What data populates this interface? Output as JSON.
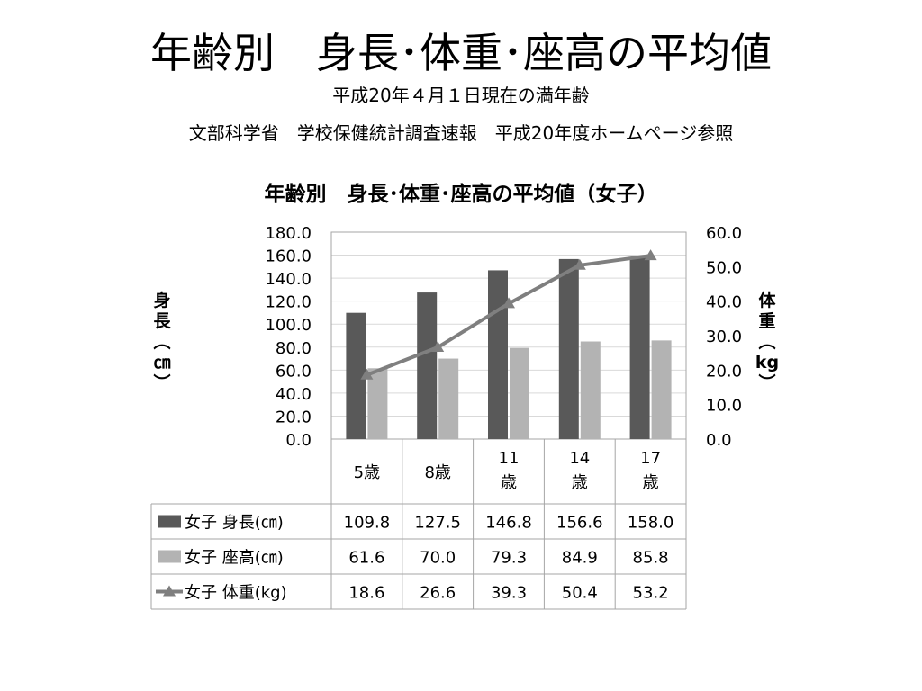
{
  "slide": {
    "title": "年齢別　身長･体重･座高の平均値",
    "subtitle1": "平成20年４月１日現在の満年齢",
    "subtitle2": "文部科学省　学校保健統計調査速報　平成20年度ホームページ参照"
  },
  "chart_data": {
    "type": "bar",
    "title": "年齢別　身長･体重･座高の平均値（女子）",
    "categories": [
      "5歳",
      "8歳",
      "11歳",
      "14歳",
      "17歳"
    ],
    "category_lines": [
      [
        "5歳"
      ],
      [
        "8歳"
      ],
      [
        "11",
        "歳"
      ],
      [
        "14",
        "歳"
      ],
      [
        "17",
        "歳"
      ]
    ],
    "ylabel_left": [
      "身",
      "長",
      "︵",
      "㎝",
      "︶"
    ],
    "ylabel_right": [
      "体",
      "重",
      "︵",
      "kg",
      "︶"
    ],
    "ylim_left": [
      0,
      180
    ],
    "ylim_right": [
      0,
      60
    ],
    "yticks_left": [
      "0.0",
      "20.0",
      "40.0",
      "60.0",
      "80.0",
      "100.0",
      "120.0",
      "140.0",
      "160.0",
      "180.0"
    ],
    "yticks_right": [
      "0.0",
      "10.0",
      "20.0",
      "30.0",
      "40.0",
      "50.0",
      "60.0"
    ],
    "grid": true,
    "legend": "data-table",
    "series": [
      {
        "name": "女子 身長(㎝)",
        "type": "bar",
        "axis": "left",
        "color": "#595959",
        "values": [
          109.8,
          127.5,
          146.8,
          156.6,
          158.0
        ],
        "labels": [
          "109.8",
          "127.5",
          "146.8",
          "156.6",
          "158.0"
        ]
      },
      {
        "name": "女子 座高(㎝)",
        "type": "bar",
        "axis": "left",
        "color": "#b3b3b3",
        "values": [
          61.6,
          70.0,
          79.3,
          84.9,
          85.8
        ],
        "labels": [
          "61.6",
          "70.0",
          "79.3",
          "84.9",
          "85.8"
        ]
      },
      {
        "name": "女子 体重(kg)",
        "type": "line",
        "axis": "right",
        "color": "#7f7f7f",
        "values": [
          18.6,
          26.6,
          39.3,
          50.4,
          53.2
        ],
        "labels": [
          "18.6",
          "26.6",
          "39.3",
          "50.4",
          "53.2"
        ]
      }
    ]
  }
}
